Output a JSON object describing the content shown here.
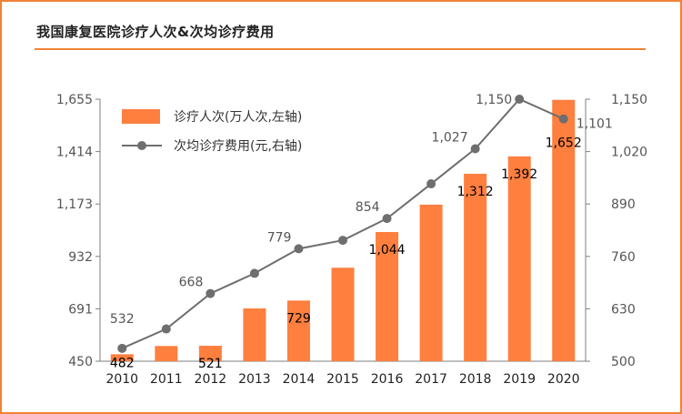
{
  "title": "我国康复医院诊疗人次&次均诊疗费用",
  "chart_data": {
    "type": "bar+line",
    "categories": [
      "2010",
      "2011",
      "2012",
      "2013",
      "2014",
      "2015",
      "2016",
      "2017",
      "2018",
      "2019",
      "2020"
    ],
    "series": [
      {
        "name": "诊疗人次(万人次,左轴)",
        "type": "bar",
        "axis": "left",
        "color": "#ff7f3f",
        "values": [
          482,
          520,
          521,
          693,
          729,
          880,
          1044,
          1170,
          1312,
          1392,
          1652
        ],
        "labels": [
          "482",
          "",
          "521",
          "",
          "729",
          "",
          "1,044",
          "",
          "1,312",
          "1,392",
          "1,652"
        ]
      },
      {
        "name": "次均诊疗费用(元,右轴)",
        "type": "line",
        "axis": "right",
        "color": "#6e6e6e",
        "values": [
          532,
          580,
          668,
          718,
          779,
          800,
          854,
          940,
          1027,
          1150,
          1101
        ],
        "labels": [
          "532",
          "",
          "668",
          "",
          "779",
          "",
          "854",
          "",
          "1,027",
          "1,150",
          "1,101"
        ]
      }
    ],
    "y_left": {
      "ylim": [
        450,
        1655
      ],
      "ticks": [
        450,
        691,
        932,
        1173,
        1414,
        1655
      ],
      "tick_labels": [
        "450",
        "691",
        "932",
        "1,173",
        "1,414",
        "1,655"
      ]
    },
    "y_right": {
      "ylim": [
        500,
        1150
      ],
      "ticks": [
        500,
        630,
        760,
        890,
        1020,
        1150
      ],
      "tick_labels": [
        "500",
        "630",
        "760",
        "890",
        "1,020",
        "1,150"
      ]
    },
    "legend": "top-left",
    "grid": false
  }
}
